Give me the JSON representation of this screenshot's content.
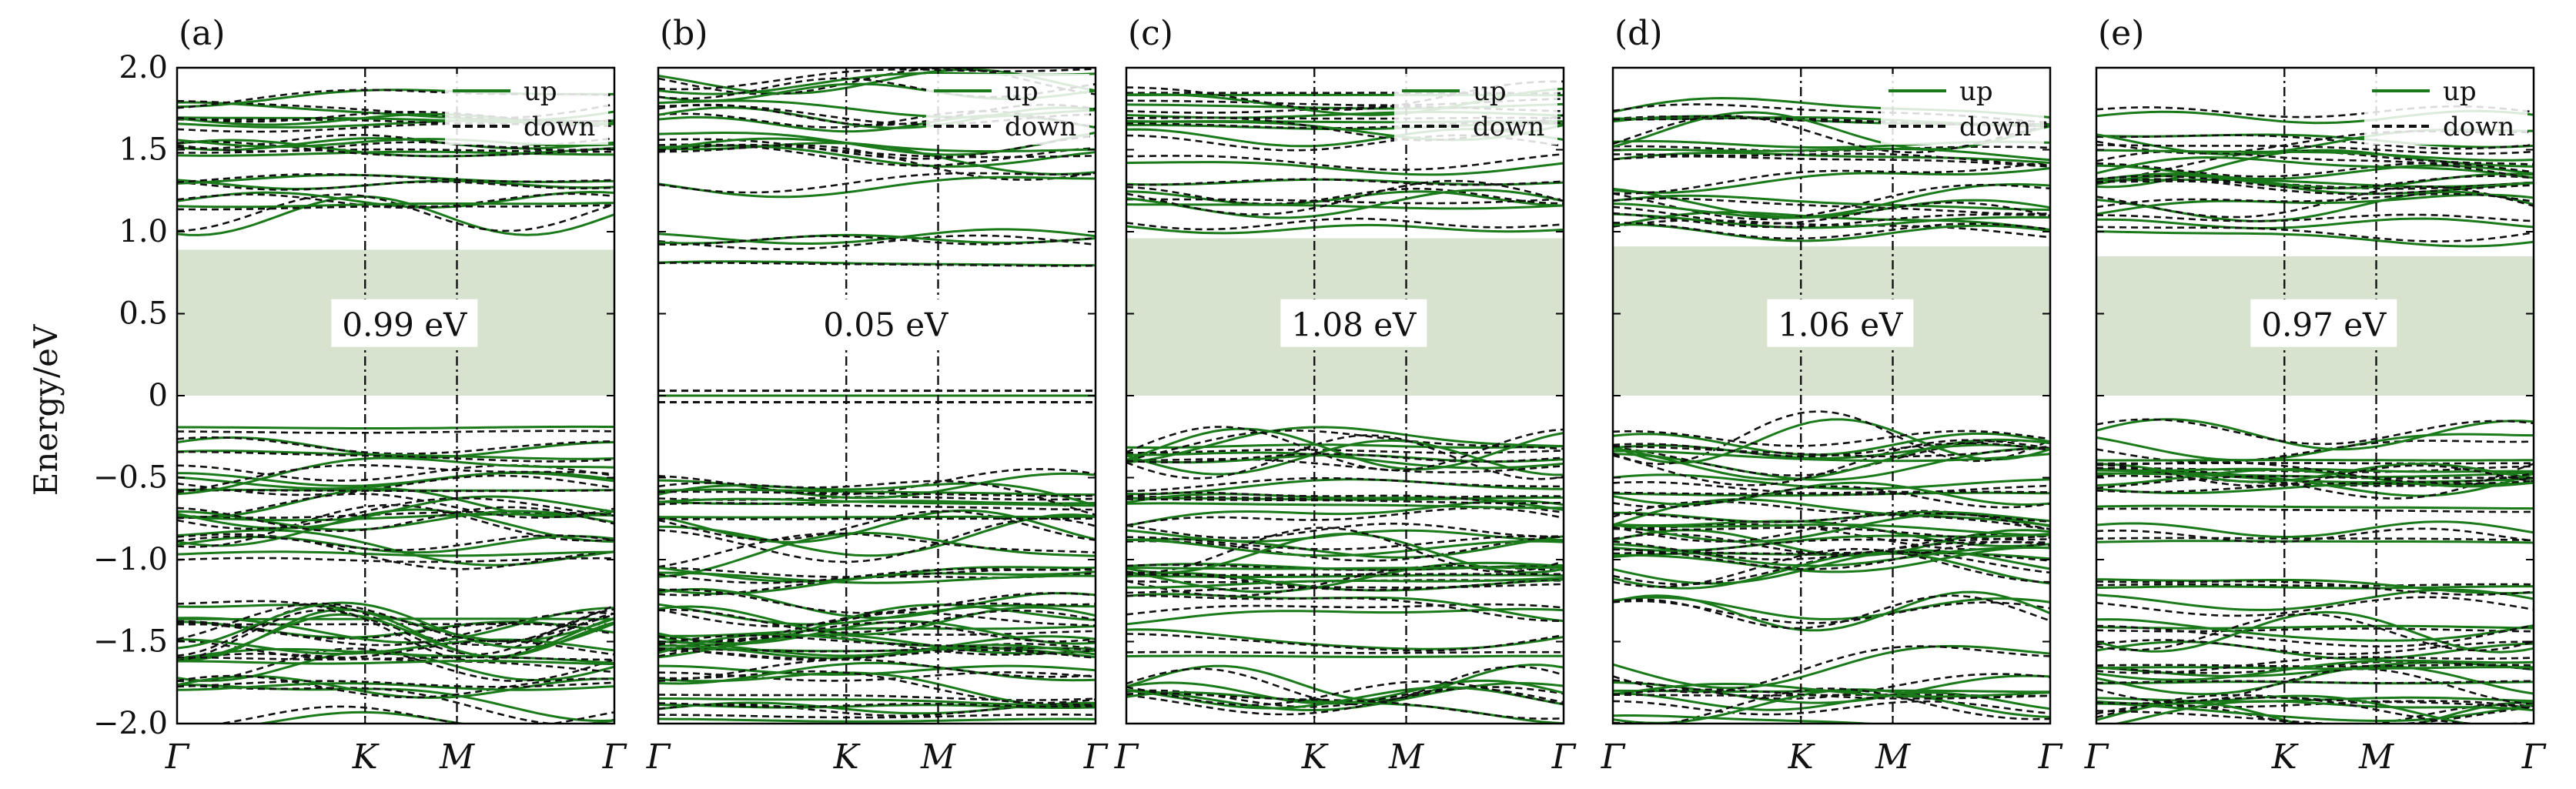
{
  "figure": {
    "ylabel": "Energy/eV"
  },
  "chart_data": [
    {
      "type": "line",
      "panel_label": "(a)",
      "x": [
        "Γ",
        "K",
        "M",
        "Γ"
      ],
      "y_range": [
        -2.0,
        2.0
      ],
      "y_ticks": [
        "2.0",
        "1.5",
        "1.0",
        "0.5",
        "0",
        "−0.5",
        "−1.0",
        "−1.5",
        "−2.0"
      ],
      "legend": [
        "up",
        "down"
      ],
      "legend_position": "top-right",
      "gap_label": "0.99 eV",
      "gap_range": [
        0.0,
        0.89
      ],
      "gap_shaded": true,
      "vbm": -0.1,
      "cbm": 0.89,
      "conduction_max": 1.85,
      "valence_min": -2.0,
      "series": [
        {
          "name": "up",
          "color": "#1a7a1a",
          "style": "solid"
        },
        {
          "name": "down",
          "color": "#111111",
          "style": "dashed"
        }
      ]
    },
    {
      "type": "line",
      "panel_label": "(b)",
      "x": [
        "Γ",
        "K",
        "M",
        "Γ"
      ],
      "y_range": [
        -2.0,
        2.0
      ],
      "legend": [
        "up",
        "down"
      ],
      "legend_position": "top-right",
      "gap_label": "0.05 eV",
      "gap_range": [
        0.0,
        0.05
      ],
      "gap_shaded": false,
      "vbm": -0.45,
      "cbm": 0.6,
      "conduction_max": 1.95,
      "valence_min": -2.0,
      "midgap_bands": [
        0.03,
        0.0,
        -0.04
      ],
      "series": [
        {
          "name": "up",
          "color": "#1a7a1a",
          "style": "solid"
        },
        {
          "name": "down",
          "color": "#111111",
          "style": "dashed"
        }
      ]
    },
    {
      "type": "line",
      "panel_label": "(c)",
      "x": [
        "Γ",
        "K",
        "M",
        "Γ"
      ],
      "y_range": [
        -2.0,
        2.0
      ],
      "legend": [
        "up",
        "down"
      ],
      "legend_position": "top-right",
      "gap_label": "1.08 eV",
      "gap_range": [
        0.0,
        0.96
      ],
      "gap_shaded": true,
      "vbm": -0.12,
      "cbm": 0.96,
      "conduction_max": 1.9,
      "valence_min": -2.0,
      "series": [
        {
          "name": "up",
          "color": "#1a7a1a",
          "style": "solid"
        },
        {
          "name": "down",
          "color": "#111111",
          "style": "dashed"
        }
      ]
    },
    {
      "type": "line",
      "panel_label": "(d)",
      "x": [
        "Γ",
        "K",
        "M",
        "Γ"
      ],
      "y_range": [
        -2.0,
        2.0
      ],
      "legend": [
        "up",
        "down"
      ],
      "legend_position": "top-right",
      "gap_label": "1.06 eV",
      "gap_range": [
        0.0,
        0.91
      ],
      "gap_shaded": true,
      "vbm": -0.17,
      "cbm": 0.91,
      "conduction_max": 1.8,
      "valence_min": -2.0,
      "series": [
        {
          "name": "up",
          "color": "#1a7a1a",
          "style": "solid"
        },
        {
          "name": "down",
          "color": "#111111",
          "style": "dashed"
        }
      ]
    },
    {
      "type": "line",
      "panel_label": "(e)",
      "x": [
        "Γ",
        "K",
        "M",
        "Γ"
      ],
      "y_range": [
        -2.0,
        2.0
      ],
      "legend": [
        "up",
        "down"
      ],
      "legend_position": "top-right",
      "gap_label": "0.97 eV",
      "gap_range": [
        0.0,
        0.85
      ],
      "gap_shaded": true,
      "vbm": -0.13,
      "cbm": 0.85,
      "conduction_max": 1.75,
      "valence_min": -2.0,
      "series": [
        {
          "name": "up",
          "color": "#1a7a1a",
          "style": "solid"
        },
        {
          "name": "down",
          "color": "#111111",
          "style": "dashed"
        }
      ]
    }
  ],
  "colors": {
    "up": "#1a7a1a",
    "down": "#111111",
    "gap_fill": "#d7e3cf",
    "axis": "#000000"
  }
}
